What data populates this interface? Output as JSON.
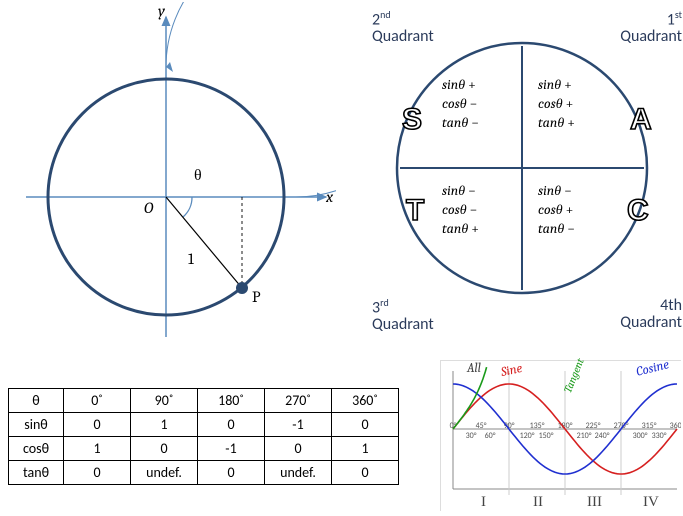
{
  "unitCircle": {
    "axes": {
      "x": "x",
      "y": "y"
    },
    "origin": "O",
    "theta": "θ",
    "radius": "1",
    "point": "P",
    "colors": {
      "circle": "#2b4970",
      "axis": "#5a8bbd",
      "arrow": "#5a8bbd",
      "arc": "#5a8bbd",
      "radiusLine": "#000",
      "dot": "#2b4970"
    },
    "angleDeg": -50
  },
  "astc": {
    "title_q1": "1",
    "title_q2": "2",
    "title_q3": "3",
    "title_q4": "4th",
    "word": "Quadrant",
    "letters": {
      "q1": "A",
      "q2": "S",
      "q3": "T",
      "q4": "C"
    },
    "signs": {
      "q1": {
        "sin": "+",
        "cos": "+",
        "tan": "+"
      },
      "q2": {
        "sin": "+",
        "cos": "−",
        "tan": "−"
      },
      "q3": {
        "sin": "−",
        "cos": "−",
        "tan": "+"
      },
      "q4": {
        "sin": "−",
        "cos": "+",
        "tan": "−"
      }
    },
    "circleColor": "#2b4970"
  },
  "table": {
    "head": [
      "θ",
      "0˚",
      "90˚",
      "180˚",
      "270˚",
      "360˚"
    ],
    "rows": [
      [
        "sinθ",
        "0",
        "1",
        "0",
        "-1",
        "0"
      ],
      [
        "cosθ",
        "1",
        "0",
        "-1",
        "0",
        "1"
      ],
      [
        "tanθ",
        "0",
        "undef.",
        "0",
        "undef.",
        "0"
      ]
    ]
  },
  "graph": {
    "labels": {
      "all": "All",
      "sine": "Sine",
      "tangent": "Tangent",
      "cosine": "Cosine"
    },
    "colors": {
      "sine": "#d62020",
      "cosine": "#2030d0",
      "tangent": "#1a9a1a",
      "axis": "#888",
      "grid": "#ccc"
    },
    "xticksTop": [
      "45°",
      "90°",
      "135°",
      "180°",
      "225°",
      "270°",
      "315°"
    ],
    "xticksBot": [
      "30°",
      "60°",
      "120°",
      "150°",
      "210°",
      "240°",
      "300°",
      "330°"
    ],
    "roman": [
      "I",
      "II",
      "III",
      "IV"
    ]
  }
}
